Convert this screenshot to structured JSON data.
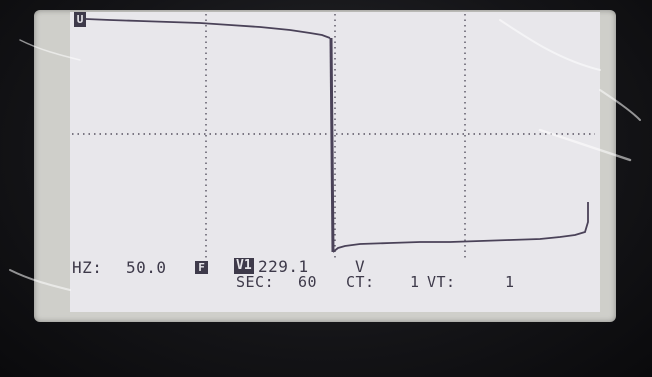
{
  "trace_marker": "U",
  "status": {
    "hz_label": "HZ:",
    "hz_value": "50.0",
    "filter_badge": "F",
    "channel_badge": "V1",
    "voltage_value": "229.1",
    "voltage_unit": "V",
    "sec_label": "SEC:",
    "sec_value": "60",
    "ct_label": "CT:",
    "ct_value": "1",
    "vt_label": "VT:",
    "vt_value": "1"
  },
  "colors": {
    "trace": "#4a4258",
    "grid": "#55505f",
    "screen": "#e7e6ea"
  }
}
